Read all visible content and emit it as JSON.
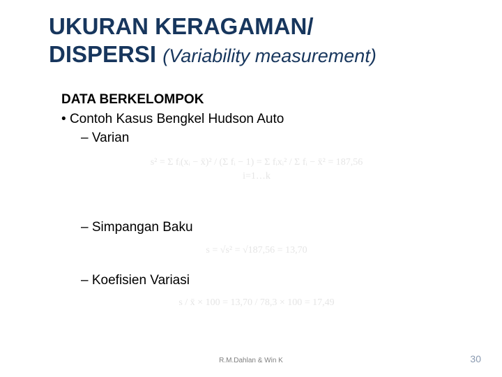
{
  "title": {
    "line1": "UKURAN KERAGAMAN/",
    "line2_main": "DISPERSI ",
    "line2_sub": "(Variability measurement)"
  },
  "body": {
    "heading": "DATA BERKELOMPOK",
    "bullet1": "Contoh Kasus Bengkel Hudson Auto",
    "dash1": "Varian",
    "formula1_a": "s² = Σ fᵢ(xᵢ − x̄)² / (Σ fᵢ − 1) = Σ fᵢxᵢ² / Σ fᵢ − x̄² = 187,56",
    "formula1_b": "i=1…k",
    "dash2": "Simpangan Baku",
    "formula2": "s = √s² = √187,56 = 13,70",
    "dash3": "Koefisien Variasi",
    "formula3": "s / x̄ × 100 = 13,70 / 78,3 × 100 = 17,49"
  },
  "footer": {
    "credit": "R.M.Dahlan & Win K",
    "page": "30"
  },
  "colors": {
    "title": "#17365d",
    "text": "#000000",
    "formula_faded": "#e5e5e5",
    "footer": "#7f7f7f",
    "page": "#8a9ab0",
    "background": "#ffffff"
  }
}
